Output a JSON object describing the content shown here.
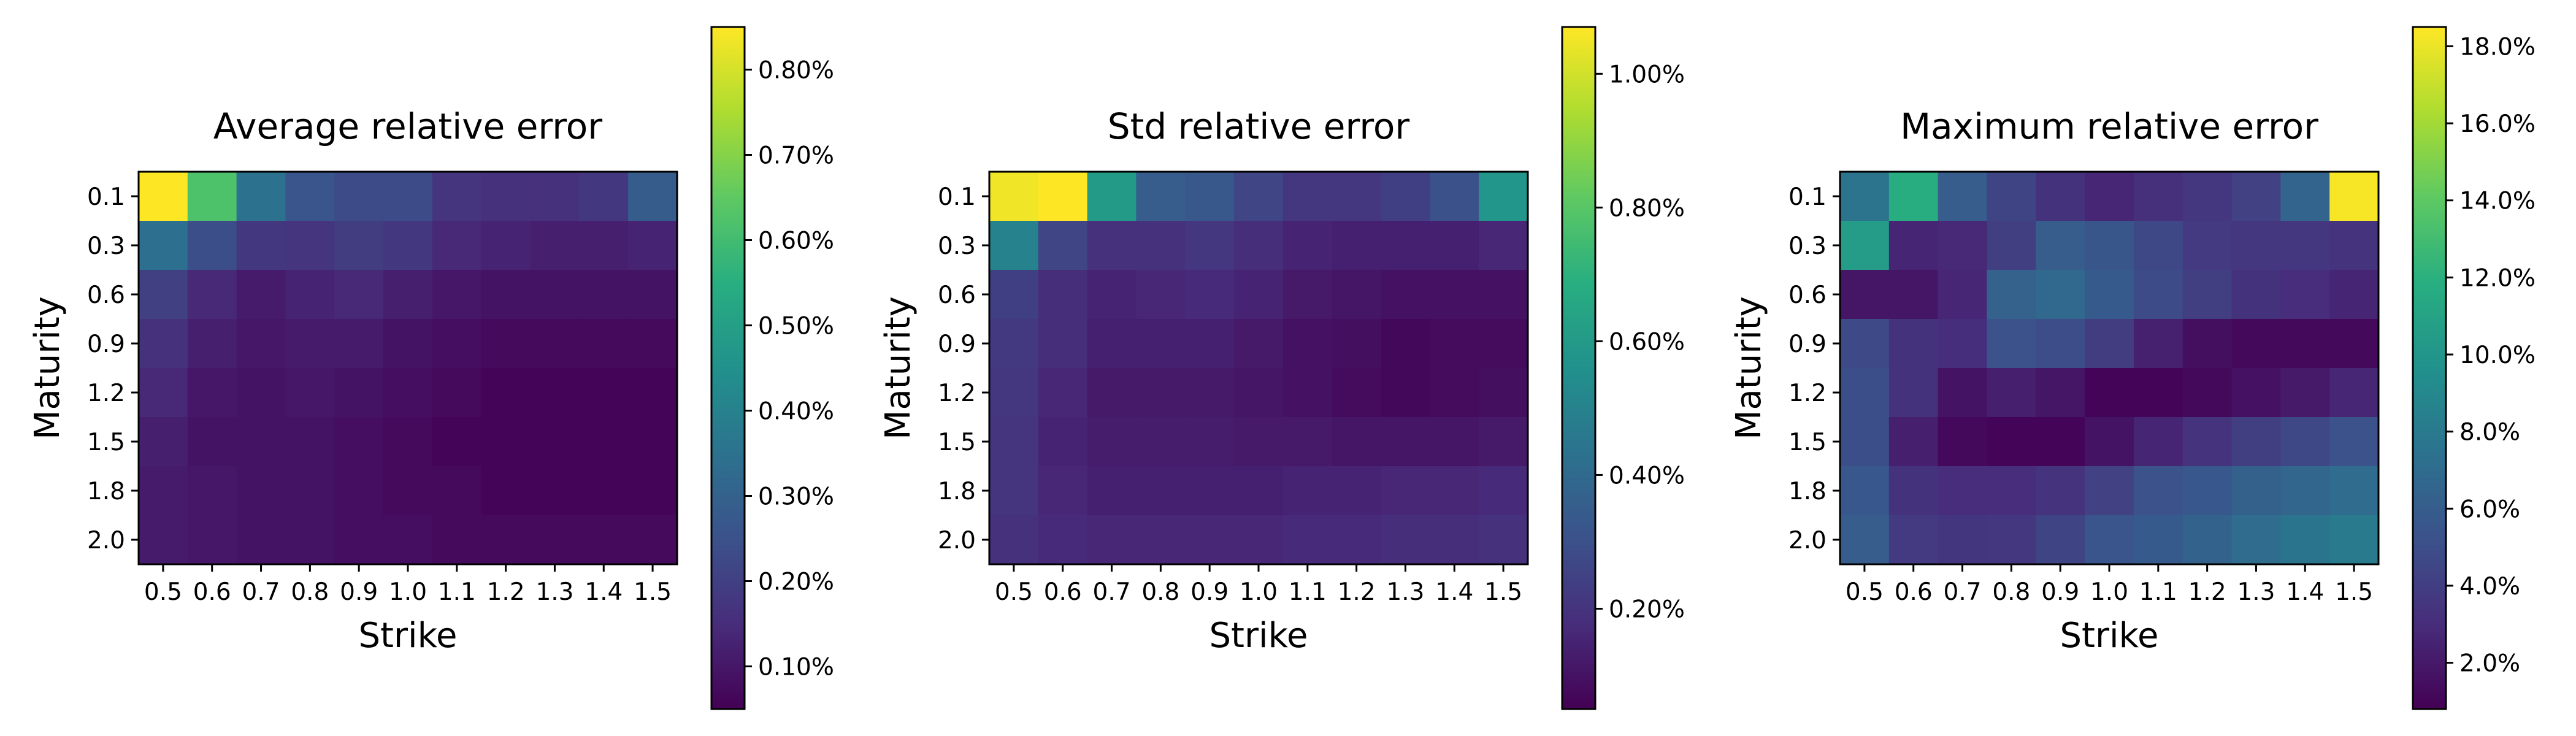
{
  "chart_data": [
    {
      "type": "heatmap",
      "title": "Average relative error",
      "xlabel": "Strike",
      "ylabel": "Maturity",
      "x": [
        "0.5",
        "0.6",
        "0.7",
        "0.8",
        "0.9",
        "1.0",
        "1.1",
        "1.2",
        "1.3",
        "1.4",
        "1.5"
      ],
      "y": [
        "0.1",
        "0.3",
        "0.6",
        "0.9",
        "1.2",
        "1.5",
        "1.8",
        "2.0"
      ],
      "colorbar": {
        "range": [
          0.05,
          0.85
        ],
        "ticks": [
          0.1,
          0.2,
          0.3,
          0.4,
          0.5,
          0.6,
          0.7,
          0.8
        ],
        "tick_labels": [
          "0.10%",
          "0.20%",
          "0.30%",
          "0.40%",
          "0.50%",
          "0.60%",
          "0.70%",
          "0.80%"
        ]
      },
      "colormap": "viridis",
      "values": [
        [
          0.85,
          0.62,
          0.35,
          0.26,
          0.23,
          0.23,
          0.17,
          0.16,
          0.16,
          0.18,
          0.28
        ],
        [
          0.34,
          0.24,
          0.18,
          0.17,
          0.19,
          0.18,
          0.14,
          0.13,
          0.12,
          0.12,
          0.13
        ],
        [
          0.2,
          0.14,
          0.11,
          0.13,
          0.14,
          0.12,
          0.1,
          0.09,
          0.09,
          0.09,
          0.09
        ],
        [
          0.16,
          0.12,
          0.1,
          0.11,
          0.11,
          0.09,
          0.08,
          0.07,
          0.07,
          0.07,
          0.07
        ],
        [
          0.14,
          0.1,
          0.09,
          0.1,
          0.09,
          0.08,
          0.07,
          0.06,
          0.06,
          0.06,
          0.06
        ],
        [
          0.12,
          0.09,
          0.09,
          0.09,
          0.08,
          0.07,
          0.06,
          0.06,
          0.06,
          0.06,
          0.06
        ],
        [
          0.11,
          0.1,
          0.09,
          0.09,
          0.08,
          0.07,
          0.07,
          0.06,
          0.06,
          0.06,
          0.06
        ],
        [
          0.11,
          0.1,
          0.09,
          0.09,
          0.08,
          0.08,
          0.07,
          0.07,
          0.07,
          0.07,
          0.07
        ]
      ]
    },
    {
      "type": "heatmap",
      "title": "Std relative error",
      "xlabel": "Strike",
      "ylabel": "Maturity",
      "x": [
        "0.5",
        "0.6",
        "0.7",
        "0.8",
        "0.9",
        "1.0",
        "1.1",
        "1.2",
        "1.3",
        "1.4",
        "1.5"
      ],
      "y": [
        "0.1",
        "0.3",
        "0.6",
        "0.9",
        "1.2",
        "1.5",
        "1.8",
        "2.0"
      ],
      "colorbar": {
        "range": [
          0.05,
          1.07
        ],
        "ticks": [
          0.2,
          0.4,
          0.6,
          0.8,
          1.0
        ],
        "tick_labels": [
          "0.20%",
          "0.40%",
          "0.60%",
          "0.80%",
          "1.00%"
        ]
      },
      "colormap": "viridis",
      "values": [
        [
          1.05,
          1.07,
          0.6,
          0.35,
          0.33,
          0.26,
          0.21,
          0.21,
          0.24,
          0.3,
          0.58
        ],
        [
          0.5,
          0.26,
          0.19,
          0.19,
          0.21,
          0.18,
          0.15,
          0.14,
          0.14,
          0.14,
          0.16
        ],
        [
          0.24,
          0.18,
          0.15,
          0.16,
          0.17,
          0.15,
          0.12,
          0.11,
          0.1,
          0.1,
          0.1
        ],
        [
          0.22,
          0.18,
          0.14,
          0.14,
          0.14,
          0.12,
          0.1,
          0.09,
          0.07,
          0.08,
          0.08
        ],
        [
          0.21,
          0.16,
          0.12,
          0.12,
          0.12,
          0.11,
          0.1,
          0.08,
          0.07,
          0.08,
          0.09
        ],
        [
          0.2,
          0.15,
          0.13,
          0.13,
          0.13,
          0.12,
          0.12,
          0.11,
          0.11,
          0.11,
          0.12
        ],
        [
          0.2,
          0.16,
          0.14,
          0.14,
          0.14,
          0.14,
          0.15,
          0.15,
          0.16,
          0.16,
          0.17
        ],
        [
          0.19,
          0.17,
          0.16,
          0.16,
          0.16,
          0.16,
          0.17,
          0.17,
          0.18,
          0.18,
          0.19
        ]
      ]
    },
    {
      "type": "heatmap",
      "title": "Maximum relative error",
      "xlabel": "Strike",
      "ylabel": "Maturity",
      "x": [
        "0.5",
        "0.6",
        "0.7",
        "0.8",
        "0.9",
        "1.0",
        "1.1",
        "1.2",
        "1.3",
        "1.4",
        "1.5"
      ],
      "y": [
        "0.1",
        "0.3",
        "0.6",
        "0.9",
        "1.2",
        "1.5",
        "1.8",
        "2.0"
      ],
      "colorbar": {
        "range": [
          0.8,
          18.5
        ],
        "ticks": [
          2,
          4,
          6,
          8,
          10,
          12,
          14,
          16,
          18
        ],
        "tick_labels": [
          "2.0%",
          "4.0%",
          "6.0%",
          "8.0%",
          "10.0%",
          "12.0%",
          "14.0%",
          "16.0%",
          "18.0%"
        ]
      },
      "colormap": "viridis",
      "values": [
        [
          7.5,
          11.8,
          6.0,
          4.4,
          3.3,
          2.7,
          3.2,
          3.6,
          4.2,
          6.5,
          18.3
        ],
        [
          10.5,
          2.6,
          2.8,
          4.0,
          6.0,
          5.5,
          4.6,
          3.8,
          3.6,
          3.6,
          3.4
        ],
        [
          1.8,
          1.8,
          2.7,
          6.3,
          6.8,
          5.8,
          4.8,
          4.0,
          3.3,
          3.0,
          2.6
        ],
        [
          4.7,
          3.3,
          3.1,
          5.2,
          4.9,
          3.9,
          2.4,
          1.5,
          1.2,
          1.2,
          1.2
        ],
        [
          5.0,
          3.3,
          1.7,
          2.3,
          1.8,
          1.0,
          1.0,
          1.2,
          1.6,
          2.0,
          2.7
        ],
        [
          5.0,
          2.3,
          1.2,
          1.0,
          1.0,
          1.7,
          2.6,
          3.4,
          4.0,
          4.6,
          5.2
        ],
        [
          5.6,
          3.3,
          3.0,
          3.0,
          3.4,
          4.2,
          5.2,
          5.6,
          6.2,
          6.6,
          7.0
        ],
        [
          6.0,
          3.8,
          3.5,
          3.6,
          4.4,
          5.4,
          5.8,
          6.4,
          7.0,
          7.6,
          8.0
        ]
      ]
    }
  ]
}
